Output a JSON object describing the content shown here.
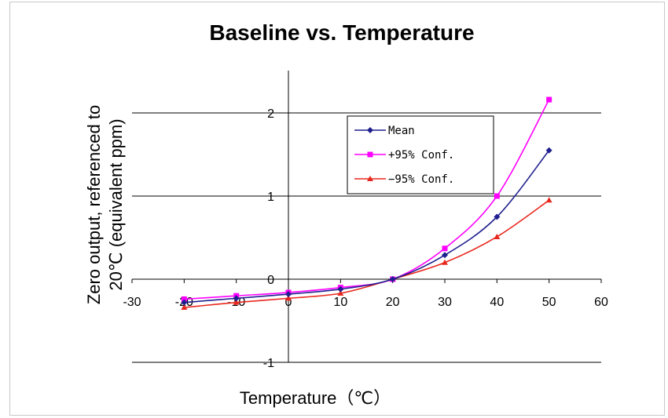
{
  "chart_data": {
    "type": "line",
    "title": "Baseline vs. Temperature",
    "xlabel": "Temperature（℃）",
    "ylabel_line1": "Zero output, referenced to",
    "ylabel_line2": "20℃ (equivalent ppm)",
    "xlim": [
      -30,
      60
    ],
    "ylim": [
      -1,
      2.5
    ],
    "x_ticks": [
      "-30",
      "-20",
      "-10",
      "0",
      "10",
      "20",
      "30",
      "40",
      "50",
      "60"
    ],
    "y_ticks": [
      "-1",
      "0",
      "1",
      "2"
    ],
    "x": [
      -20,
      -10,
      0,
      10,
      20,
      30,
      40,
      50
    ],
    "series": [
      {
        "name": "Mean",
        "color": "#1f1f8f",
        "marker": "diamond",
        "values": [
          -0.28,
          -0.23,
          -0.18,
          -0.12,
          0.0,
          0.29,
          0.75,
          1.55
        ]
      },
      {
        "name": "+95% Conf.",
        "color": "#ff00ff",
        "marker": "square",
        "values": [
          -0.24,
          -0.2,
          -0.16,
          -0.1,
          0.0,
          0.37,
          1.0,
          2.16
        ]
      },
      {
        "name": "−95% Conf.",
        "color": "#e8281e",
        "marker": "triangle",
        "values": [
          -0.34,
          -0.28,
          -0.23,
          -0.17,
          0.0,
          0.2,
          0.51,
          0.95
        ]
      }
    ],
    "grid": "horizontal",
    "legend_position": "upper-right"
  }
}
